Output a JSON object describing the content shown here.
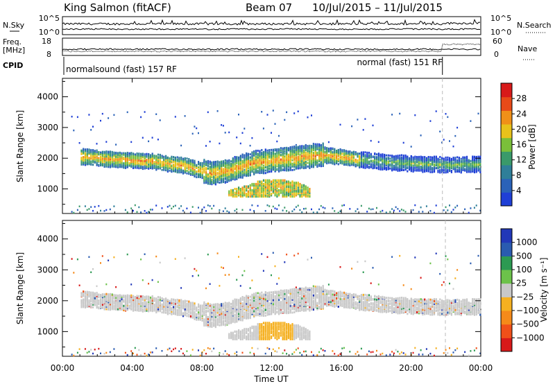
{
  "header": {
    "station": "King Salmon (fitACF)",
    "beam": "Beam 07",
    "dates": "10/Jul/2015 – 11/Jul/2015"
  },
  "left_labels": {
    "nsky": "N.Sky",
    "freq_line1": "Freq.",
    "freq_line2": "[MHz]",
    "cpid": "CPID"
  },
  "right_labels": {
    "nsearch": "N.Search",
    "nave": "Nave"
  },
  "top_ticks": {
    "noise_hi": "10^5",
    "noise_lo": "10^0",
    "freq_hi": "18",
    "freq_lo": "8",
    "nave_hi": "60",
    "nave_lo": "0"
  },
  "cpid_labels": {
    "first": "normalsound (fast) 157 RF",
    "second": "normal (fast) 151 RF"
  },
  "colors": {
    "power_scale": [
      "#1f3fd6",
      "#2a62b8",
      "#2f7f99",
      "#3a9a6a",
      "#7abf3a",
      "#e8c21a",
      "#f09018",
      "#e84a18",
      "#d81a1a"
    ],
    "velocity_scale": [
      "#d81a1a",
      "#f0501a",
      "#f58a1a",
      "#f5b020",
      "#c8c8c8",
      "#6cc24a",
      "#2c9a52",
      "#2a5bb0",
      "#2238b8"
    ],
    "ground_scatter": "#c8c8c8"
  },
  "chart_data": {
    "type": "heatmap",
    "xlabel": "Time UT",
    "x_ticks": [
      "00:00",
      "04:00",
      "08:00",
      "12:00",
      "16:00",
      "20:00",
      "00:00"
    ],
    "x_range_hours": [
      0,
      24
    ],
    "ylabel": "Slant Range [km]",
    "y_ticks": [
      1000,
      2000,
      3000,
      4000
    ],
    "y_range_km": [
      200,
      4600
    ],
    "cpid_change_hour": 21.8,
    "panels": [
      {
        "name": "power",
        "colorbar_label": "Power [dB]",
        "colorbar_ticks": [
          "4",
          "8",
          "12",
          "16",
          "20",
          "24",
          "28"
        ],
        "range": [
          0,
          30
        ]
      },
      {
        "name": "velocity",
        "colorbar_label": "Velocity [m s⁻¹]",
        "colorbar_ticks": [
          "1000",
          "500",
          "100",
          "25",
          "−25",
          "−100",
          "−500",
          "−1000"
        ],
        "range": [
          -1000,
          1000
        ]
      }
    ],
    "echo_bands": [
      {
        "name": "main band",
        "hours": [
          [
            1,
            2050
          ],
          [
            3,
            1950
          ],
          [
            5,
            1900
          ],
          [
            7,
            1750
          ],
          [
            8.5,
            1500
          ],
          [
            9.5,
            1600
          ],
          [
            11,
            1850
          ],
          [
            13,
            1980
          ],
          [
            15,
            2100
          ],
          [
            17,
            1950
          ],
          [
            19,
            1850
          ],
          [
            21,
            1800
          ],
          [
            22,
            1780
          ],
          [
            24,
            1800
          ]
        ]
      },
      {
        "name": "lower patch",
        "hours": [
          [
            9.5,
            900
          ],
          [
            10.5,
            1050
          ],
          [
            11.5,
            1250
          ],
          [
            12.5,
            1250
          ],
          [
            13.5,
            1150
          ],
          [
            14.2,
            950
          ]
        ]
      }
    ]
  }
}
